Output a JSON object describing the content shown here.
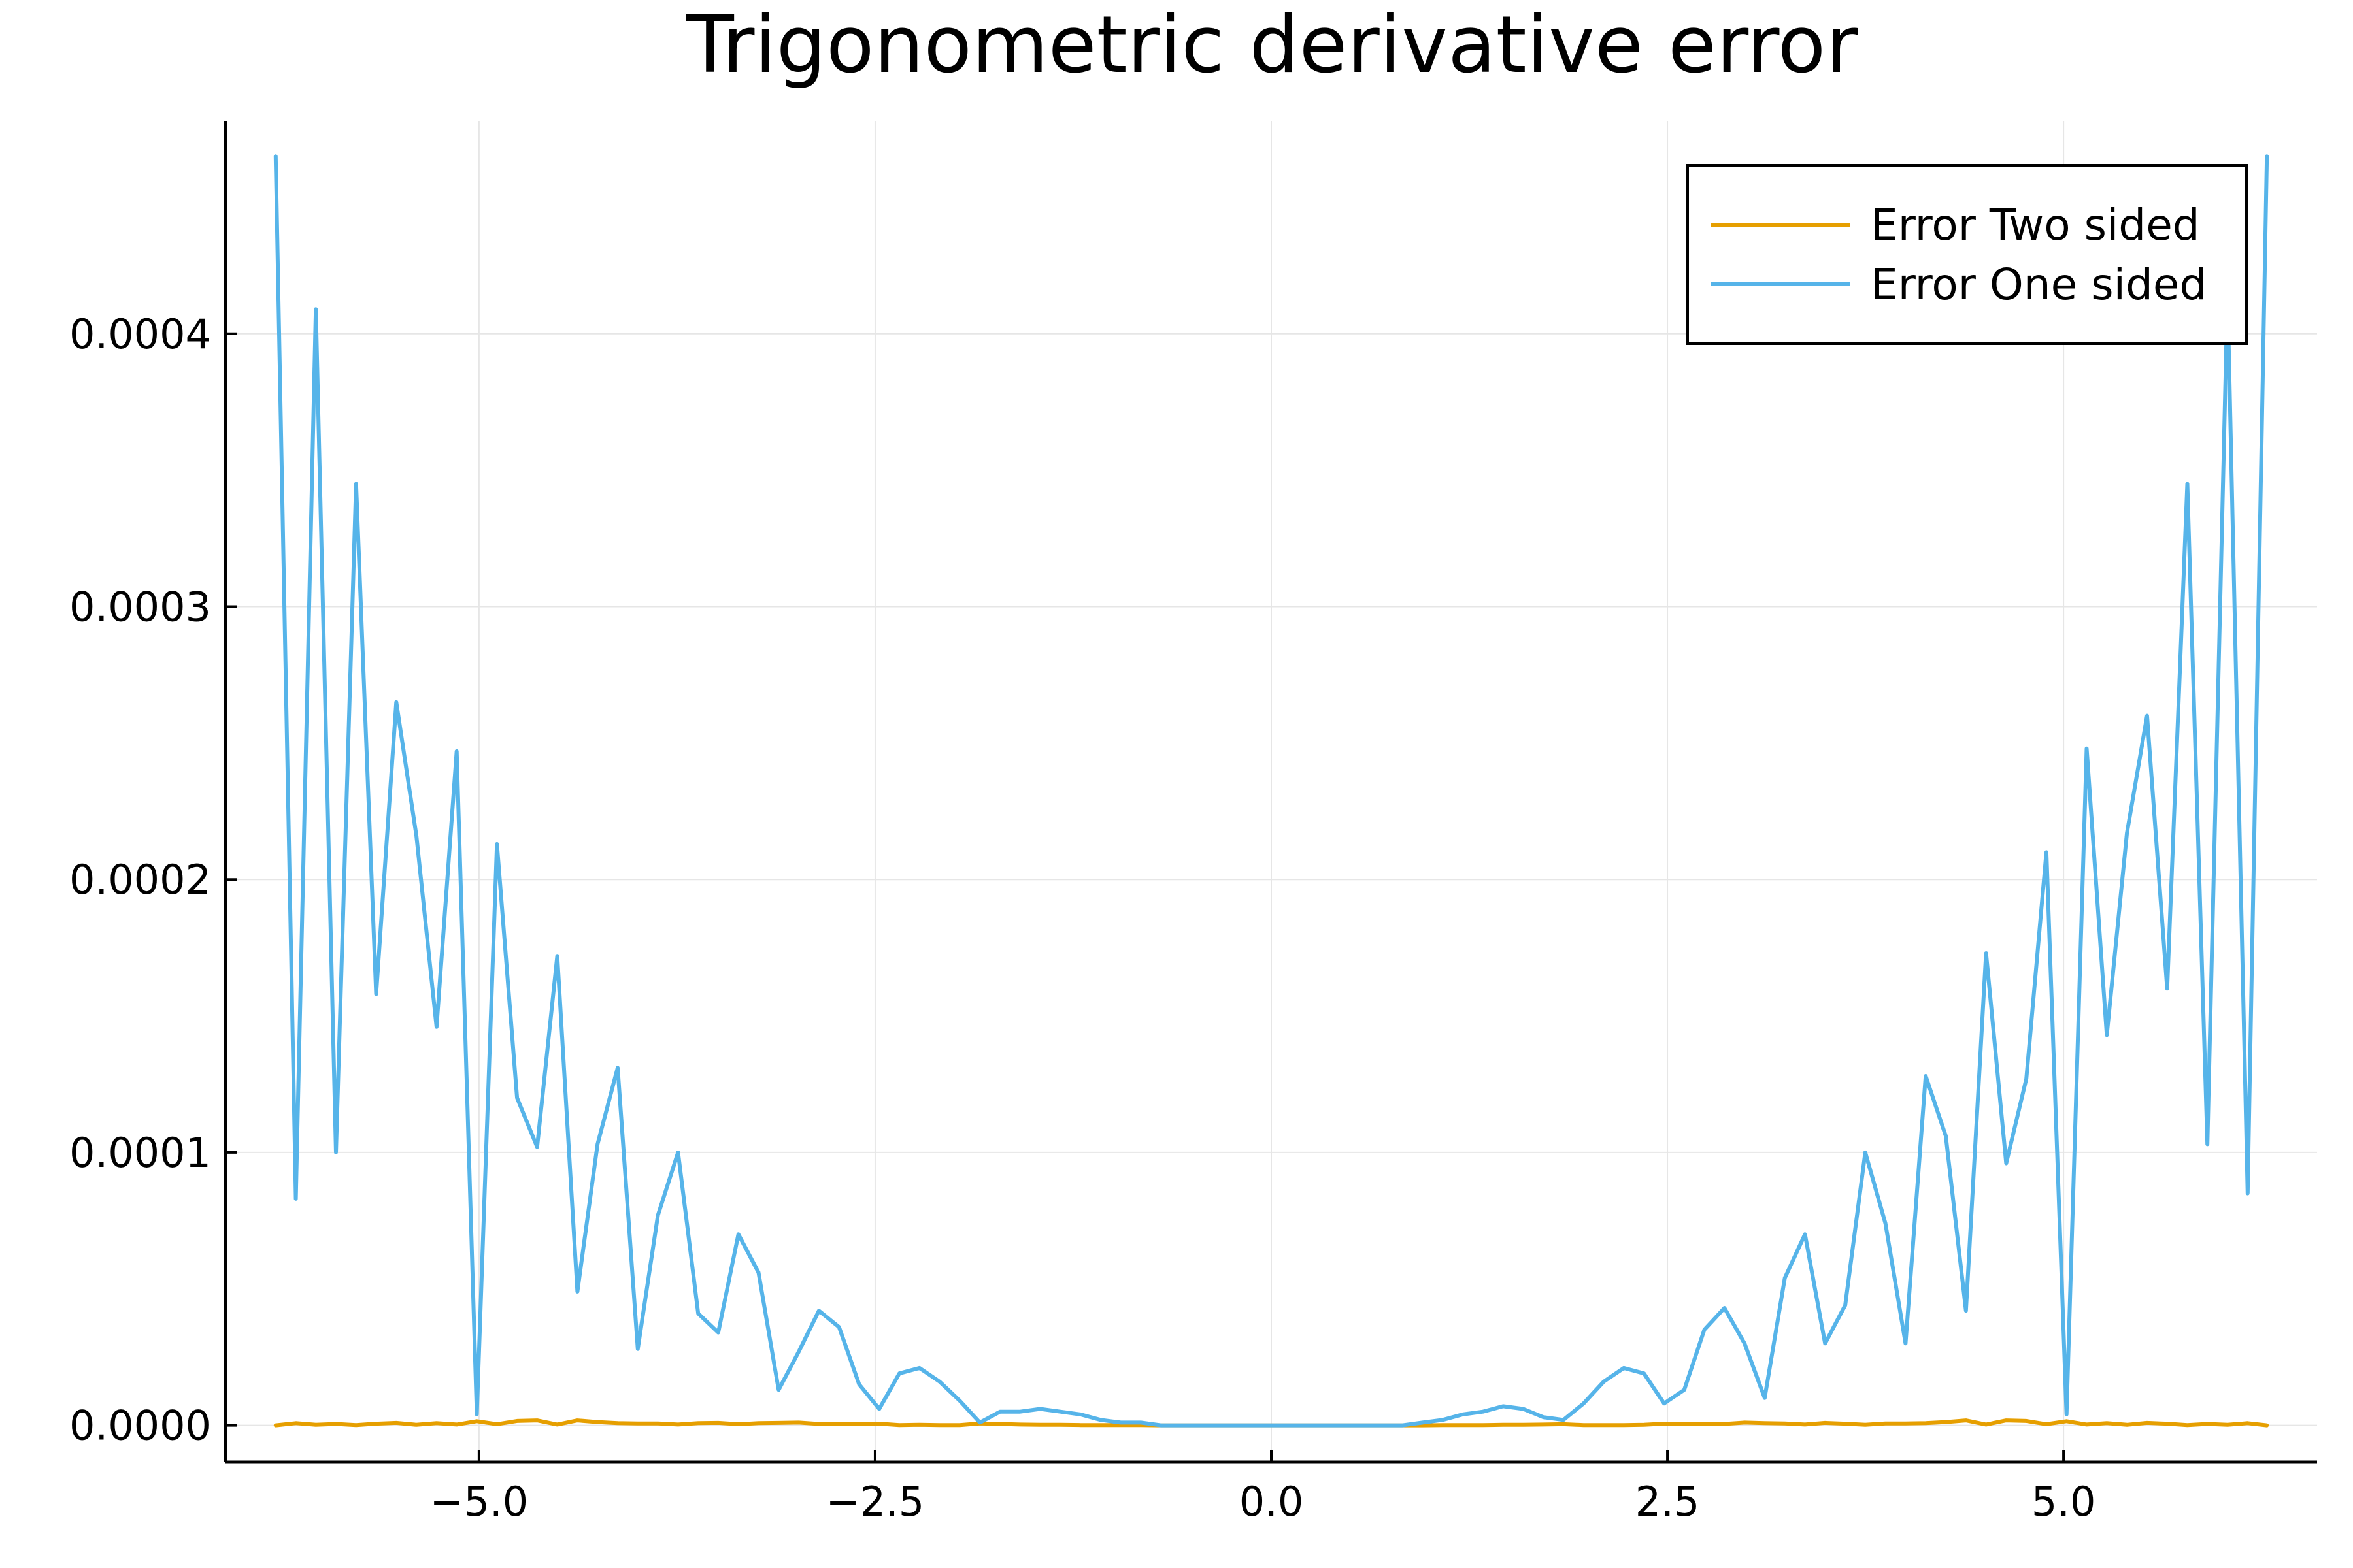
{
  "chart_data": {
    "type": "line",
    "title": "Trigonometric derivative error",
    "xlabel": "",
    "ylabel": "",
    "xlim": [
      -6.6,
      6.6
    ],
    "ylim": [
      -1.35e-05,
      0.000478
    ],
    "xticks": [
      -5.0,
      -2.5,
      0.0,
      2.5,
      5.0
    ],
    "xtick_labels": [
      "−5.0",
      "−2.5",
      "0.0",
      "2.5",
      "5.0"
    ],
    "yticks": [
      0.0,
      0.0001,
      0.0002,
      0.0003,
      0.0004
    ],
    "ytick_labels": [
      "0.0000",
      "0.0001",
      "0.0002",
      "0.0003",
      "0.0004"
    ],
    "grid": true,
    "legend_position": "top-right",
    "series": [
      {
        "name": "Error Two sided",
        "color": "#e69f00",
        "x": [
          -6.283,
          -6.156,
          -6.03,
          -5.903,
          -5.776,
          -5.649,
          -5.522,
          -5.395,
          -5.268,
          -5.141,
          -5.014,
          -4.887,
          -4.76,
          -4.633,
          -4.506,
          -4.379,
          -4.252,
          -4.125,
          -3.998,
          -3.871,
          -3.744,
          -3.617,
          -3.49,
          -3.363,
          -3.236,
          -3.109,
          -2.982,
          -2.855,
          -2.728,
          -2.601,
          -2.474,
          -2.347,
          -2.22,
          -2.093,
          -1.966,
          -1.839,
          -1.712,
          -1.585,
          -1.458,
          -1.331,
          -1.204,
          -1.077,
          -0.95,
          -0.823,
          -0.696,
          -0.569,
          -0.442,
          -0.315,
          -0.188,
          -0.061,
          0.066,
          0.193,
          0.32,
          0.447,
          0.574,
          0.701,
          0.828,
          0.955,
          1.082,
          1.209,
          1.336,
          1.463,
          1.59,
          1.717,
          1.844,
          1.971,
          2.098,
          2.225,
          2.352,
          2.479,
          2.606,
          2.733,
          2.86,
          2.987,
          3.114,
          3.241,
          3.368,
          3.495,
          3.622,
          3.749,
          3.876,
          4.003,
          4.13,
          4.257,
          4.384,
          4.511,
          4.638,
          4.765,
          4.892,
          5.019,
          5.146,
          5.273,
          5.4,
          5.527,
          5.654,
          5.781,
          5.908,
          6.035,
          6.162,
          6.283
        ],
        "values": [
          0.0,
          8e-07,
          2e-07,
          5e-07,
          1e-07,
          6e-07,
          9e-07,
          2e-07,
          8e-07,
          3e-07,
          1.5e-06,
          4e-07,
          1.6e-06,
          1.8e-06,
          3e-07,
          1.8e-06,
          1.2e-06,
          8e-07,
          7e-07,
          7e-07,
          3e-07,
          8e-07,
          9e-07,
          4e-07,
          8e-07,
          9e-07,
          1e-06,
          5e-07,
          4e-07,
          4e-07,
          6e-07,
          1e-07,
          2e-07,
          1e-07,
          1e-07,
          7e-07,
          5e-07,
          3e-07,
          2e-07,
          2e-07,
          1e-07,
          1e-07,
          1e-07,
          1e-07,
          0.0,
          0.0,
          0.0,
          0.0,
          0.0,
          0.0,
          0.0,
          0.0,
          0.0,
          0.0,
          0.0,
          0.0,
          0.0,
          0.0,
          1e-07,
          1e-07,
          1e-07,
          2e-07,
          2e-07,
          3e-07,
          4e-07,
          1e-07,
          1e-07,
          1e-07,
          2e-07,
          6e-07,
          4e-07,
          4e-07,
          5e-07,
          1e-06,
          8e-07,
          7e-07,
          3e-07,
          9e-07,
          6e-07,
          2e-07,
          7e-07,
          7e-07,
          8e-07,
          1.2e-06,
          1.8e-06,
          3e-07,
          1.8e-06,
          1.6e-06,
          4e-07,
          1.5e-06,
          3e-07,
          8e-07,
          2e-07,
          9e-07,
          6e-07,
          1e-07,
          5e-07,
          2e-07,
          8e-07,
          0.0
        ]
      },
      {
        "name": "Error One sided",
        "color": "#56b4e9",
        "x": [
          -6.283,
          -6.156,
          -6.03,
          -5.903,
          -5.776,
          -5.649,
          -5.522,
          -5.395,
          -5.268,
          -5.141,
          -5.014,
          -4.887,
          -4.76,
          -4.633,
          -4.506,
          -4.379,
          -4.252,
          -4.125,
          -3.998,
          -3.871,
          -3.744,
          -3.617,
          -3.49,
          -3.363,
          -3.236,
          -3.109,
          -2.982,
          -2.855,
          -2.728,
          -2.601,
          -2.474,
          -2.347,
          -2.22,
          -2.093,
          -1.966,
          -1.839,
          -1.712,
          -1.585,
          -1.458,
          -1.331,
          -1.204,
          -1.077,
          -0.95,
          -0.823,
          -0.696,
          -0.569,
          -0.442,
          -0.315,
          -0.188,
          -0.061,
          0.066,
          0.193,
          0.32,
          0.447,
          0.574,
          0.701,
          0.828,
          0.955,
          1.082,
          1.209,
          1.336,
          1.463,
          1.59,
          1.717,
          1.844,
          1.971,
          2.098,
          2.225,
          2.352,
          2.479,
          2.606,
          2.733,
          2.86,
          2.987,
          3.114,
          3.241,
          3.368,
          3.495,
          3.622,
          3.749,
          3.876,
          4.003,
          4.13,
          4.257,
          4.384,
          4.511,
          4.638,
          4.765,
          4.892,
          5.019,
          5.146,
          5.273,
          5.4,
          5.527,
          5.654,
          5.781,
          5.908,
          6.035,
          6.162,
          6.283
        ],
        "values": [
          0.000465,
          8.3e-05,
          0.000409,
          0.0001,
          0.000345,
          0.000158,
          0.000265,
          0.000216,
          0.000146,
          0.000247,
          4e-06,
          0.000213,
          0.00012,
          0.000102,
          0.000172,
          4.9e-05,
          0.000103,
          0.000131,
          2.8e-05,
          7.7e-05,
          0.0001,
          4.1e-05,
          3.4e-05,
          7e-05,
          5.6e-05,
          1.3e-05,
          2.7e-05,
          4.2e-05,
          3.6e-05,
          1.5e-05,
          6e-06,
          1.9e-05,
          2.1e-05,
          1.6e-05,
          9e-06,
          1e-06,
          5e-06,
          5e-06,
          6e-06,
          5e-06,
          4e-06,
          2e-06,
          1e-06,
          1e-06,
          0.0,
          0.0,
          0.0,
          0.0,
          0.0,
          0.0,
          0.0,
          0.0,
          0.0,
          0.0,
          0.0,
          0.0,
          0.0,
          1e-06,
          2e-06,
          4e-06,
          5e-06,
          7e-06,
          6e-06,
          3e-06,
          2e-06,
          8e-06,
          1.6e-05,
          2.1e-05,
          1.9e-05,
          8e-06,
          1.3e-05,
          3.5e-05,
          4.3e-05,
          3e-05,
          1e-05,
          5.4e-05,
          7e-05,
          3e-05,
          4.4e-05,
          0.0001,
          7.4e-05,
          3e-05,
          0.000128,
          0.000106,
          4.2e-05,
          0.000173,
          9.6e-05,
          0.000127,
          0.00021,
          4e-06,
          0.000248,
          0.000143,
          0.000217,
          0.00026,
          0.00016,
          0.000345,
          0.000103,
          0.000415,
          8.5e-05,
          0.000465
        ]
      }
    ]
  }
}
